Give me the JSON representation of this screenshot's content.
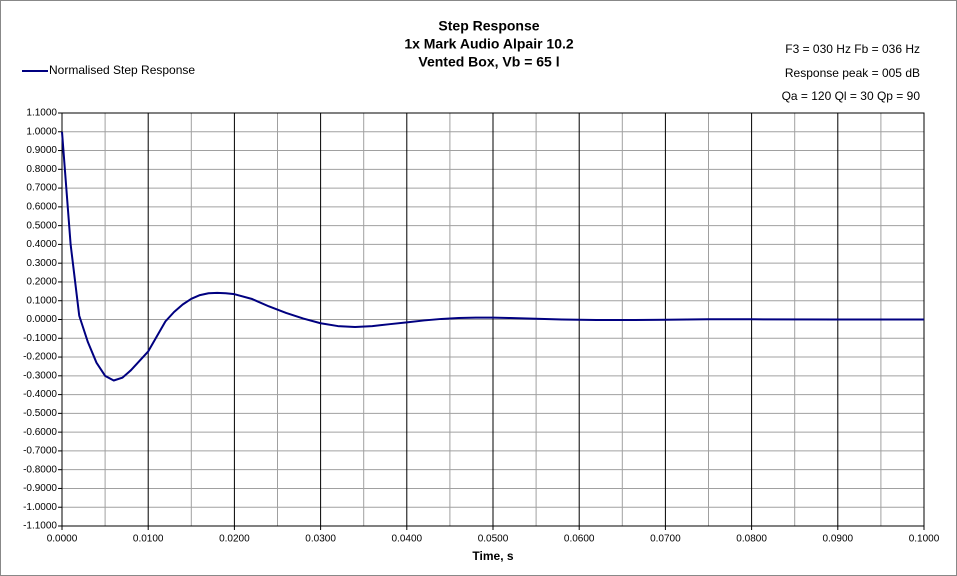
{
  "chart_data": {
    "type": "line",
    "title": [
      "Step Response",
      "1x Mark Audio Alpair 10.2",
      "Vented Box, Vb = 65 l"
    ],
    "annotations": [
      "F3 = 030  Hz  Fb = 036 Hz",
      "Response  peak = 005  dB",
      "Qa = 120   Ql = 30  Qp = 90"
    ],
    "x_label": "Time, s",
    "legend": "upper left",
    "grid": true,
    "xlim": [
      0,
      0.1
    ],
    "ylim": [
      -1.1,
      1.1
    ],
    "xticks": [
      {
        "value": 0,
        "label": "0.0000"
      },
      {
        "value": 0.01,
        "label": "0.0100"
      },
      {
        "value": 0.02,
        "label": "0.0200"
      },
      {
        "value": 0.03,
        "label": "0.0300"
      },
      {
        "value": 0.04,
        "label": "0.0400"
      },
      {
        "value": 0.05,
        "label": "0.0500"
      },
      {
        "value": 0.06,
        "label": "0.0600"
      },
      {
        "value": 0.07,
        "label": "0.0700"
      },
      {
        "value": 0.08,
        "label": "0.0800"
      },
      {
        "value": 0.09,
        "label": "0.0900"
      },
      {
        "value": 0.1,
        "label": "0.1000"
      }
    ],
    "yticks": [
      {
        "value": -1.1,
        "label": "-1.1000"
      },
      {
        "value": -1.0,
        "label": "-1.0000"
      },
      {
        "value": -0.9,
        "label": "-0.9000"
      },
      {
        "value": -0.8,
        "label": "-0.8000"
      },
      {
        "value": -0.7,
        "label": "-0.7000"
      },
      {
        "value": -0.6,
        "label": "-0.6000"
      },
      {
        "value": -0.5,
        "label": "-0.5000"
      },
      {
        "value": -0.4,
        "label": "-0.4000"
      },
      {
        "value": -0.3,
        "label": "-0.3000"
      },
      {
        "value": -0.2,
        "label": "-0.2000"
      },
      {
        "value": -0.1,
        "label": "-0.1000"
      },
      {
        "value": 0,
        "label": "0.0000"
      },
      {
        "value": 0.1,
        "label": "0.1000"
      },
      {
        "value": 0.2,
        "label": "0.2000"
      },
      {
        "value": 0.3,
        "label": "0.3000"
      },
      {
        "value": 0.4,
        "label": "0.4000"
      },
      {
        "value": 0.5,
        "label": "0.5000"
      },
      {
        "value": 0.6,
        "label": "0.6000"
      },
      {
        "value": 0.7,
        "label": "0.7000"
      },
      {
        "value": 0.8,
        "label": "0.8000"
      },
      {
        "value": 0.9,
        "label": "0.9000"
      },
      {
        "value": 1.0,
        "label": "1.0000"
      },
      {
        "value": 1.1,
        "label": "1.1000"
      }
    ],
    "x": [
      0,
      0.001,
      0.002,
      0.003,
      0.004,
      0.005,
      0.006,
      0.007,
      0.008,
      0.009,
      0.01,
      0.011,
      0.012,
      0.013,
      0.014,
      0.015,
      0.016,
      0.017,
      0.018,
      0.019,
      0.02,
      0.022,
      0.024,
      0.026,
      0.028,
      0.03,
      0.032,
      0.034,
      0.036,
      0.038,
      0.04,
      0.042,
      0.044,
      0.046,
      0.048,
      0.05,
      0.052,
      0.055,
      0.058,
      0.062,
      0.066,
      0.07,
      0.075,
      0.08,
      0.09,
      0.1
    ],
    "series": [
      {
        "name": "Normalised Step Response",
        "color": "#000080",
        "values": [
          1.0,
          0.4,
          0.02,
          -0.12,
          -0.23,
          -0.3,
          -0.325,
          -0.31,
          -0.27,
          -0.22,
          -0.17,
          -0.09,
          -0.01,
          0.04,
          0.08,
          0.11,
          0.13,
          0.14,
          0.142,
          0.14,
          0.135,
          0.11,
          0.07,
          0.035,
          0.005,
          -0.02,
          -0.035,
          -0.04,
          -0.035,
          -0.025,
          -0.015,
          -0.005,
          0.003,
          0.008,
          0.01,
          0.01,
          0.008,
          0.004,
          0,
          -0.003,
          -0.003,
          -0.001,
          0.001,
          0.001,
          0,
          0
        ]
      }
    ]
  }
}
